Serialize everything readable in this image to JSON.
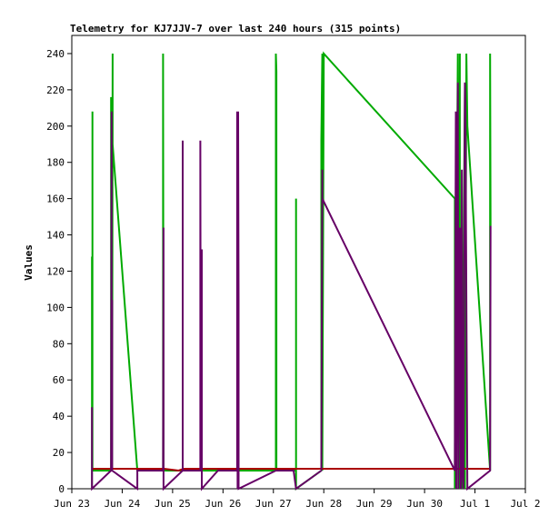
{
  "chart_data": {
    "type": "line",
    "title": "Telemetry for KJ7JJV-7 over last 240 hours (315 points)",
    "xlabel": "",
    "ylabel": "Values",
    "x_unit": "days since Jun 23 00:00",
    "xlim": [
      0,
      9
    ],
    "ylim": [
      0,
      250
    ],
    "x_ticks": [
      {
        "x": 0,
        "label": "Jun 23"
      },
      {
        "x": 1,
        "label": "Jun 24"
      },
      {
        "x": 2,
        "label": "Jun 25"
      },
      {
        "x": 3,
        "label": "Jun 26"
      },
      {
        "x": 4,
        "label": "Jun 27"
      },
      {
        "x": 5,
        "label": "Jun 28"
      },
      {
        "x": 6,
        "label": "Jun 29"
      },
      {
        "x": 7,
        "label": "Jun 30"
      },
      {
        "x": 8,
        "label": "Jul 1"
      },
      {
        "x": 9,
        "label": "Jul 2"
      }
    ],
    "y_ticks": [
      0,
      20,
      40,
      60,
      80,
      100,
      120,
      140,
      160,
      180,
      200,
      220,
      240
    ],
    "grid": false,
    "legend": "none",
    "series": [
      {
        "color": "#00aa00",
        "points": [
          [
            0.4,
            0
          ],
          [
            0.4,
            128
          ],
          [
            0.4,
            25
          ],
          [
            0.41,
            45
          ],
          [
            0.41,
            208
          ],
          [
            0.41,
            10
          ],
          [
            0.78,
            10
          ],
          [
            0.78,
            216
          ],
          [
            0.8,
            10
          ],
          [
            0.81,
            240
          ],
          [
            0.81,
            190
          ],
          [
            1.3,
            10
          ],
          [
            1.3,
            10
          ],
          [
            1.55,
            10
          ],
          [
            1.55,
            10
          ],
          [
            1.81,
            10
          ],
          [
            1.81,
            240
          ],
          [
            1.82,
            10
          ],
          [
            2.1,
            10
          ],
          [
            2.12,
            10
          ],
          [
            2.22,
            10
          ],
          [
            2.22,
            10
          ],
          [
            2.55,
            10
          ],
          [
            2.95,
            10
          ],
          [
            2.95,
            10
          ],
          [
            3.28,
            10
          ],
          [
            3.3,
            10
          ],
          [
            3.3,
            10
          ],
          [
            3.33,
            10
          ],
          [
            3.33,
            10
          ],
          [
            4.05,
            10
          ],
          [
            4.05,
            240
          ],
          [
            4.06,
            230
          ],
          [
            4.06,
            10
          ],
          [
            4.15,
            10
          ],
          [
            4.35,
            10
          ],
          [
            4.35,
            10
          ],
          [
            4.45,
            10
          ],
          [
            4.45,
            160
          ],
          [
            4.45,
            0
          ],
          [
            4.95,
            10
          ],
          [
            4.95,
            192
          ],
          [
            4.97,
            240
          ],
          [
            4.97,
            10
          ],
          [
            5.0,
            240
          ],
          [
            7.6,
            160
          ],
          [
            7.6,
            0
          ],
          [
            7.66,
            240
          ],
          [
            7.67,
            0
          ],
          [
            7.7,
            240
          ],
          [
            7.7,
            0
          ],
          [
            7.74,
            10
          ],
          [
            7.74,
            0
          ],
          [
            7.8,
            224
          ],
          [
            7.8,
            0
          ],
          [
            7.83,
            240
          ],
          [
            7.85,
            200
          ],
          [
            8.3,
            10
          ],
          [
            8.3,
            240
          ],
          [
            8.31,
            145
          ]
        ]
      },
      {
        "color": "#aa0000",
        "points": [
          [
            0.4,
            11
          ],
          [
            1.55,
            11
          ],
          [
            1.55,
            10
          ],
          [
            1.55,
            11
          ],
          [
            1.83,
            11
          ],
          [
            2.12,
            10
          ],
          [
            2.22,
            11
          ],
          [
            3.35,
            11
          ],
          [
            4.95,
            11
          ],
          [
            7.6,
            11
          ],
          [
            7.9,
            11
          ],
          [
            8.31,
            11
          ]
        ]
      },
      {
        "color": "#660066",
        "points": [
          [
            0.4,
            0
          ],
          [
            0.4,
            45
          ],
          [
            0.4,
            0
          ],
          [
            0.78,
            10
          ],
          [
            0.79,
            208
          ],
          [
            0.79,
            10
          ],
          [
            0.8,
            104
          ],
          [
            0.8,
            10
          ],
          [
            1.3,
            0
          ],
          [
            1.3,
            10
          ],
          [
            1.55,
            10
          ],
          [
            1.81,
            10
          ],
          [
            1.82,
            144
          ],
          [
            1.82,
            0
          ],
          [
            2.2,
            10
          ],
          [
            2.2,
            192
          ],
          [
            2.2,
            10
          ],
          [
            2.5,
            10
          ],
          [
            2.55,
            10
          ],
          [
            2.55,
            192
          ],
          [
            2.56,
            10
          ],
          [
            2.58,
            132
          ],
          [
            2.58,
            0
          ],
          [
            2.9,
            10
          ],
          [
            3.28,
            10
          ],
          [
            3.28,
            208
          ],
          [
            3.29,
            0
          ],
          [
            3.3,
            208
          ],
          [
            3.31,
            104
          ],
          [
            3.31,
            0
          ],
          [
            4.05,
            10
          ],
          [
            4.05,
            10
          ],
          [
            4.4,
            10
          ],
          [
            4.4,
            10
          ],
          [
            4.45,
            0
          ],
          [
            4.95,
            10
          ],
          [
            4.97,
            176
          ],
          [
            4.97,
            160
          ],
          [
            7.6,
            10
          ],
          [
            7.62,
            208
          ],
          [
            7.63,
            0
          ],
          [
            7.66,
            224
          ],
          [
            7.67,
            0
          ],
          [
            7.7,
            144
          ],
          [
            7.72,
            0
          ],
          [
            7.74,
            176
          ],
          [
            7.75,
            10
          ],
          [
            7.77,
            0
          ],
          [
            7.79,
            144
          ],
          [
            7.8,
            224
          ],
          [
            7.81,
            210
          ],
          [
            7.85,
            0
          ],
          [
            8.3,
            10
          ],
          [
            8.31,
            145
          ]
        ]
      }
    ]
  }
}
